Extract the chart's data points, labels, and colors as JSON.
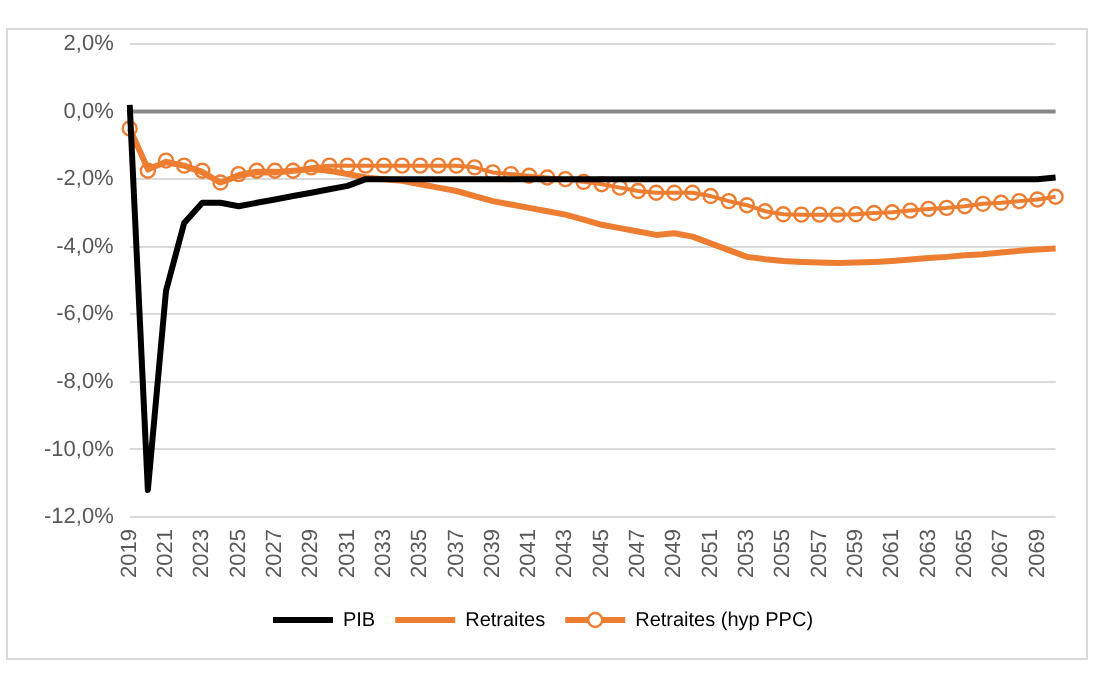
{
  "chart_data": {
    "type": "line",
    "categories": [
      "2019",
      null,
      "2021",
      null,
      "2023",
      null,
      "2025",
      null,
      "2027",
      null,
      "2029",
      null,
      "2031",
      null,
      "2033",
      null,
      "2035",
      null,
      "2037",
      null,
      "2039",
      null,
      "2041",
      null,
      "2043",
      null,
      "2045",
      null,
      "2047",
      null,
      "2049",
      null,
      "2051",
      null,
      "2053",
      null,
      "2055",
      null,
      "2057",
      null,
      "2059",
      null,
      "2061",
      null,
      "2063",
      null,
      "2065",
      null,
      "2067",
      null,
      "2069",
      null
    ],
    "series": [
      {
        "name": "PIB",
        "color": "#000000",
        "marker": "none",
        "values": [
          0.2,
          -11.2,
          -5.3,
          -3.3,
          -2.7,
          -2.7,
          -2.8,
          -2.7,
          -2.6,
          -2.5,
          -2.4,
          -2.3,
          -2.2,
          -2.0,
          -2.0,
          -2.0,
          -2.0,
          -2.0,
          -2.0,
          -2.0,
          -2.0,
          -2.0,
          -2.0,
          -2.0,
          -2.0,
          -2.0,
          -2.0,
          -2.0,
          -2.0,
          -2.0,
          -2.0,
          -2.0,
          -2.0,
          -2.0,
          -2.0,
          -2.0,
          -2.0,
          -2.0,
          -2.0,
          -2.0,
          -2.0,
          -2.0,
          -2.0,
          -2.0,
          -2.0,
          -2.0,
          -2.0,
          -2.0,
          -2.0,
          -2.0,
          -2.0,
          -1.95
        ]
      },
      {
        "name": "Retraites",
        "color": "#ed7d31",
        "marker": "none",
        "values": [
          -0.5,
          -1.7,
          -1.5,
          -1.6,
          -1.8,
          -2.1,
          -1.9,
          -1.8,
          -1.8,
          -1.75,
          -1.7,
          -1.75,
          -1.85,
          -1.95,
          -2.0,
          -2.05,
          -2.15,
          -2.25,
          -2.35,
          -2.5,
          -2.65,
          -2.75,
          -2.85,
          -2.95,
          -3.05,
          -3.2,
          -3.35,
          -3.45,
          -3.55,
          -3.65,
          -3.6,
          -3.7,
          -3.9,
          -4.1,
          -4.3,
          -4.37,
          -4.42,
          -4.45,
          -4.47,
          -4.48,
          -4.47,
          -4.45,
          -4.42,
          -4.38,
          -4.33,
          -4.3,
          -4.25,
          -4.22,
          -4.17,
          -4.12,
          -4.08,
          -4.05
        ]
      },
      {
        "name": "Retraites (hyp PPC)",
        "color": "#ed7d31",
        "marker": "circle",
        "values": [
          -0.5,
          -1.75,
          -1.45,
          -1.6,
          -1.75,
          -2.1,
          -1.85,
          -1.75,
          -1.75,
          -1.75,
          -1.65,
          -1.6,
          -1.6,
          -1.6,
          -1.6,
          -1.6,
          -1.6,
          -1.6,
          -1.6,
          -1.65,
          -1.8,
          -1.85,
          -1.9,
          -1.95,
          -2.0,
          -2.08,
          -2.15,
          -2.25,
          -2.35,
          -2.4,
          -2.4,
          -2.4,
          -2.5,
          -2.65,
          -2.77,
          -2.95,
          -3.04,
          -3.05,
          -3.05,
          -3.05,
          -3.04,
          -3.0,
          -2.98,
          -2.93,
          -2.88,
          -2.85,
          -2.8,
          -2.73,
          -2.7,
          -2.65,
          -2.6,
          -2.52
        ]
      }
    ],
    "ylim": [
      -12,
      2
    ],
    "yticks": [
      {
        "value": -12,
        "label": "-12,0%"
      },
      {
        "value": -10,
        "label": "-10,0%"
      },
      {
        "value": -8,
        "label": "-8,0%"
      },
      {
        "value": -6,
        "label": "-6,0%"
      },
      {
        "value": -4,
        "label": "-4,0%"
      },
      {
        "value": -2,
        "label": "-2,0%"
      },
      {
        "value": 0,
        "label": "0,0%"
      },
      {
        "value": 2,
        "label": "2,0%"
      }
    ],
    "ref_lines": [
      {
        "axis": "y",
        "value": 0,
        "color": "#888888"
      }
    ],
    "grid": "y",
    "legend": "bottom"
  }
}
